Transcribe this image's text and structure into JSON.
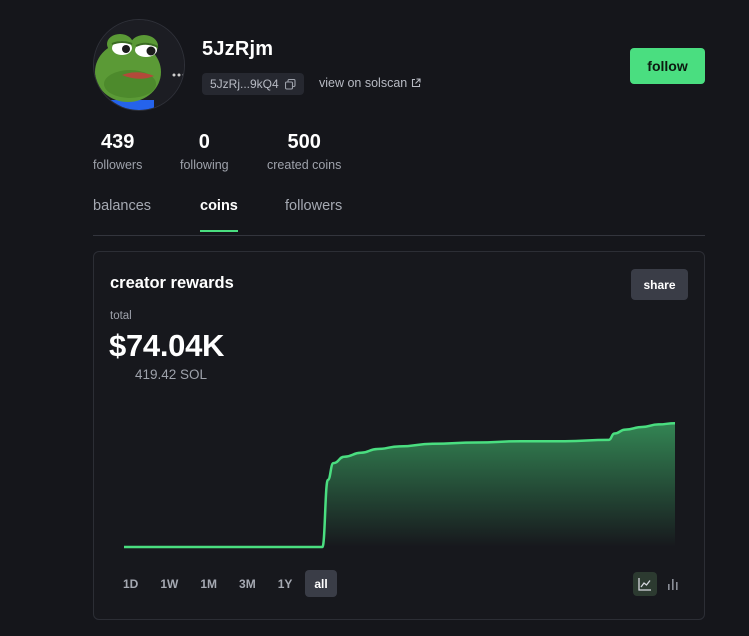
{
  "profile": {
    "username": "5JzRjm",
    "address_short": "5JzRj...9kQ4",
    "solscan_label": "view on solscan",
    "follow_label": "follow"
  },
  "stats": [
    {
      "value": "439",
      "label": "followers"
    },
    {
      "value": "0",
      "label": "following"
    },
    {
      "value": "500",
      "label": "created coins"
    }
  ],
  "tabs": [
    {
      "label": "balances",
      "active": false
    },
    {
      "label": "coins",
      "active": true
    },
    {
      "label": "followers",
      "active": false
    }
  ],
  "rewards": {
    "title": "creator rewards",
    "share_label": "share",
    "total_label": "total",
    "total_value": "$74.04K",
    "total_sol": "419.42 SOL"
  },
  "ranges": [
    {
      "label": "1D",
      "active": false
    },
    {
      "label": "1W",
      "active": false
    },
    {
      "label": "1M",
      "active": false
    },
    {
      "label": "3M",
      "active": false
    },
    {
      "label": "1Y",
      "active": false
    },
    {
      "label": "all",
      "active": true
    }
  ],
  "view_modes": [
    {
      "icon": "line-chart-icon",
      "active": true
    },
    {
      "icon": "bar-chart-icon",
      "active": false
    }
  ],
  "colors": {
    "accent": "#4ade80",
    "background": "#15161b",
    "card": "#17181d"
  },
  "chart_data": {
    "type": "area",
    "x": [
      0,
      0.36,
      0.37,
      0.38,
      0.4,
      0.43,
      0.46,
      0.5,
      0.56,
      0.64,
      0.72,
      0.8,
      0.88,
      0.89,
      0.91,
      0.94,
      0.97,
      1.0
    ],
    "values": [
      0.0,
      0.0,
      0.52,
      0.65,
      0.7,
      0.73,
      0.76,
      0.78,
      0.8,
      0.81,
      0.82,
      0.82,
      0.83,
      0.88,
      0.91,
      0.93,
      0.95,
      0.96
    ],
    "ylim": [
      0,
      1
    ],
    "grid": false,
    "color": "#4ade80"
  }
}
